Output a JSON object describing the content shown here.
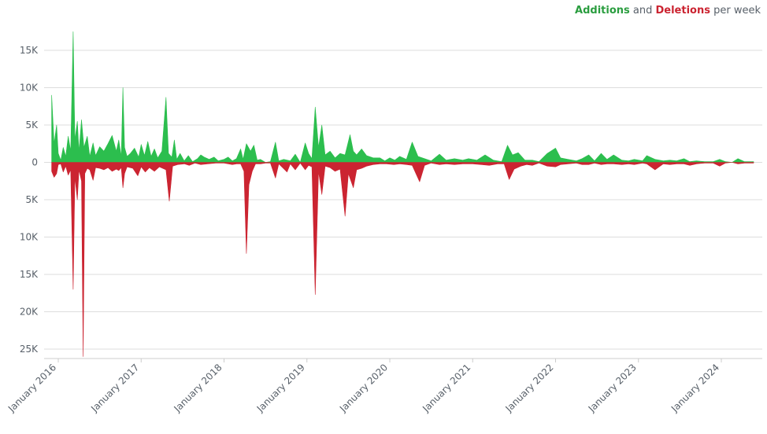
{
  "legend": {
    "additions": "Additions",
    "and": " and ",
    "deletions": "Deletions",
    "suffix": " per week"
  },
  "chart_data": {
    "type": "area",
    "title": "Additions and Deletions per week",
    "xlabel": "",
    "ylabel": "",
    "colors": {
      "additions": "#2cbe4e",
      "deletions": "#cb2431",
      "grid": "#dddddd",
      "text": "#586069"
    },
    "ylim": [
      -26000,
      18000
    ],
    "y_ticks": [
      {
        "value": 15000,
        "label": "15K"
      },
      {
        "value": 10000,
        "label": "10K"
      },
      {
        "value": 5000,
        "label": "5K"
      },
      {
        "value": 0,
        "label": "0"
      },
      {
        "value": -5000,
        "label": "5K"
      },
      {
        "value": -10000,
        "label": "10K"
      },
      {
        "value": -15000,
        "label": "15K"
      },
      {
        "value": -20000,
        "label": "20K"
      },
      {
        "value": -25000,
        "label": "25K"
      }
    ],
    "xlim": [
      2015.92,
      2024.39
    ],
    "x_ticks": [
      {
        "value": 2016,
        "label": "January 2016"
      },
      {
        "value": 2017,
        "label": "January 2017"
      },
      {
        "value": 2018,
        "label": "January 2018"
      },
      {
        "value": 2019,
        "label": "January 2019"
      },
      {
        "value": 2020,
        "label": "January 2020"
      },
      {
        "value": 2021,
        "label": "January 2021"
      },
      {
        "value": 2022,
        "label": "January 2022"
      },
      {
        "value": 2023,
        "label": "January 2023"
      },
      {
        "value": 2024,
        "label": "January 2024"
      }
    ],
    "grid": true,
    "legend_position": "top-right",
    "series": [
      {
        "name": "Additions",
        "color": "#2cbe4e",
        "points": [
          [
            2015.92,
            9000
          ],
          [
            2015.95,
            2500
          ],
          [
            2015.98,
            5000
          ],
          [
            2016.0,
            1200
          ],
          [
            2016.03,
            300
          ],
          [
            2016.06,
            2000
          ],
          [
            2016.09,
            800
          ],
          [
            2016.12,
            3500
          ],
          [
            2016.15,
            1500
          ],
          [
            2016.18,
            17500
          ],
          [
            2016.2,
            3000
          ],
          [
            2016.23,
            5500
          ],
          [
            2016.25,
            1500
          ],
          [
            2016.28,
            5700
          ],
          [
            2016.31,
            2000
          ],
          [
            2016.35,
            3500
          ],
          [
            2016.38,
            800
          ],
          [
            2016.42,
            2600
          ],
          [
            2016.45,
            900
          ],
          [
            2016.5,
            2100
          ],
          [
            2016.55,
            1500
          ],
          [
            2016.6,
            2500
          ],
          [
            2016.65,
            3600
          ],
          [
            2016.7,
            1500
          ],
          [
            2016.73,
            3000
          ],
          [
            2016.76,
            800
          ],
          [
            2016.78,
            10000
          ],
          [
            2016.8,
            2000
          ],
          [
            2016.83,
            800
          ],
          [
            2016.87,
            1200
          ],
          [
            2016.92,
            1900
          ],
          [
            2016.97,
            700
          ],
          [
            2017.0,
            2400
          ],
          [
            2017.04,
            900
          ],
          [
            2017.08,
            2800
          ],
          [
            2017.12,
            800
          ],
          [
            2017.16,
            1800
          ],
          [
            2017.2,
            600
          ],
          [
            2017.25,
            1500
          ],
          [
            2017.3,
            8700
          ],
          [
            2017.33,
            1200
          ],
          [
            2017.37,
            700
          ],
          [
            2017.4,
            3000
          ],
          [
            2017.43,
            400
          ],
          [
            2017.47,
            1200
          ],
          [
            2017.52,
            200
          ],
          [
            2017.57,
            900
          ],
          [
            2017.62,
            100
          ],
          [
            2017.68,
            500
          ],
          [
            2017.72,
            1000
          ],
          [
            2017.76,
            700
          ],
          [
            2017.82,
            400
          ],
          [
            2017.88,
            700
          ],
          [
            2017.93,
            200
          ],
          [
            2018.0,
            400
          ],
          [
            2018.05,
            700
          ],
          [
            2018.1,
            200
          ],
          [
            2018.15,
            500
          ],
          [
            2018.2,
            1800
          ],
          [
            2018.23,
            400
          ],
          [
            2018.27,
            2500
          ],
          [
            2018.32,
            1500
          ],
          [
            2018.36,
            2300
          ],
          [
            2018.4,
            300
          ],
          [
            2018.44,
            400
          ],
          [
            2018.5,
            0
          ],
          [
            2018.56,
            100
          ],
          [
            2018.62,
            2700
          ],
          [
            2018.66,
            200
          ],
          [
            2018.72,
            400
          ],
          [
            2018.8,
            200
          ],
          [
            2018.86,
            1100
          ],
          [
            2018.92,
            0
          ],
          [
            2018.98,
            2600
          ],
          [
            2019.02,
            1200
          ],
          [
            2019.06,
            500
          ],
          [
            2019.1,
            7400
          ],
          [
            2019.14,
            2000
          ],
          [
            2019.18,
            5000
          ],
          [
            2019.22,
            1000
          ],
          [
            2019.28,
            1500
          ],
          [
            2019.34,
            600
          ],
          [
            2019.4,
            1200
          ],
          [
            2019.46,
            1000
          ],
          [
            2019.52,
            3700
          ],
          [
            2019.56,
            1500
          ],
          [
            2019.6,
            1000
          ],
          [
            2019.66,
            1800
          ],
          [
            2019.72,
            900
          ],
          [
            2019.8,
            600
          ],
          [
            2019.88,
            600
          ],
          [
            2019.94,
            200
          ],
          [
            2020.0,
            600
          ],
          [
            2020.06,
            300
          ],
          [
            2020.12,
            800
          ],
          [
            2020.2,
            400
          ],
          [
            2020.27,
            2700
          ],
          [
            2020.34,
            800
          ],
          [
            2020.42,
            500
          ],
          [
            2020.5,
            200
          ],
          [
            2020.6,
            1100
          ],
          [
            2020.68,
            300
          ],
          [
            2020.78,
            500
          ],
          [
            2020.88,
            300
          ],
          [
            2020.95,
            500
          ],
          [
            2021.05,
            300
          ],
          [
            2021.15,
            1000
          ],
          [
            2021.25,
            300
          ],
          [
            2021.35,
            100
          ],
          [
            2021.42,
            2300
          ],
          [
            2021.48,
            1000
          ],
          [
            2021.55,
            1300
          ],
          [
            2021.63,
            300
          ],
          [
            2021.72,
            300
          ],
          [
            2021.8,
            100
          ],
          [
            2021.9,
            1200
          ],
          [
            2022.0,
            1900
          ],
          [
            2022.06,
            600
          ],
          [
            2022.15,
            400
          ],
          [
            2022.25,
            200
          ],
          [
            2022.32,
            500
          ],
          [
            2022.4,
            1000
          ],
          [
            2022.47,
            200
          ],
          [
            2022.55,
            1200
          ],
          [
            2022.62,
            400
          ],
          [
            2022.7,
            1000
          ],
          [
            2022.8,
            300
          ],
          [
            2022.88,
            200
          ],
          [
            2022.95,
            400
          ],
          [
            2023.05,
            200
          ],
          [
            2023.1,
            900
          ],
          [
            2023.2,
            400
          ],
          [
            2023.3,
            200
          ],
          [
            2023.38,
            300
          ],
          [
            2023.46,
            200
          ],
          [
            2023.55,
            500
          ],
          [
            2023.62,
            100
          ],
          [
            2023.7,
            200
          ],
          [
            2023.8,
            100
          ],
          [
            2023.9,
            100
          ],
          [
            2023.98,
            400
          ],
          [
            2024.05,
            100
          ],
          [
            2024.13,
            0
          ],
          [
            2024.2,
            500
          ],
          [
            2024.28,
            100
          ],
          [
            2024.35,
            100
          ],
          [
            2024.39,
            100
          ]
        ]
      },
      {
        "name": "Deletions",
        "color": "#cb2431",
        "points": [
          [
            2015.92,
            -1200
          ],
          [
            2015.95,
            -2000
          ],
          [
            2015.98,
            -1500
          ],
          [
            2016.0,
            -300
          ],
          [
            2016.03,
            -200
          ],
          [
            2016.06,
            -1300
          ],
          [
            2016.09,
            -500
          ],
          [
            2016.12,
            -1700
          ],
          [
            2016.15,
            -1000
          ],
          [
            2016.18,
            -17000
          ],
          [
            2016.2,
            -2000
          ],
          [
            2016.23,
            -5000
          ],
          [
            2016.25,
            -1000
          ],
          [
            2016.28,
            -2500
          ],
          [
            2016.3,
            -26000
          ],
          [
            2016.32,
            -1500
          ],
          [
            2016.35,
            -800
          ],
          [
            2016.38,
            -1000
          ],
          [
            2016.42,
            -2400
          ],
          [
            2016.45,
            -700
          ],
          [
            2016.5,
            -800
          ],
          [
            2016.55,
            -1000
          ],
          [
            2016.6,
            -700
          ],
          [
            2016.65,
            -1200
          ],
          [
            2016.7,
            -900
          ],
          [
            2016.73,
            -1100
          ],
          [
            2016.76,
            -700
          ],
          [
            2016.78,
            -3400
          ],
          [
            2016.8,
            -1500
          ],
          [
            2016.83,
            -600
          ],
          [
            2016.9,
            -800
          ],
          [
            2016.96,
            -1800
          ],
          [
            2017.0,
            -600
          ],
          [
            2017.05,
            -1300
          ],
          [
            2017.1,
            -700
          ],
          [
            2017.16,
            -1200
          ],
          [
            2017.22,
            -600
          ],
          [
            2017.3,
            -1000
          ],
          [
            2017.34,
            -5200
          ],
          [
            2017.38,
            -500
          ],
          [
            2017.44,
            -300
          ],
          [
            2017.52,
            -200
          ],
          [
            2017.58,
            -400
          ],
          [
            2017.65,
            -100
          ],
          [
            2017.72,
            -300
          ],
          [
            2017.8,
            -200
          ],
          [
            2017.9,
            -100
          ],
          [
            2018.0,
            -100
          ],
          [
            2018.1,
            -300
          ],
          [
            2018.15,
            -200
          ],
          [
            2018.2,
            -200
          ],
          [
            2018.24,
            -1200
          ],
          [
            2018.27,
            -12200
          ],
          [
            2018.3,
            -3000
          ],
          [
            2018.34,
            -1200
          ],
          [
            2018.38,
            -200
          ],
          [
            2018.44,
            -200
          ],
          [
            2018.5,
            -100
          ],
          [
            2018.56,
            -100
          ],
          [
            2018.62,
            -2100
          ],
          [
            2018.66,
            -200
          ],
          [
            2018.76,
            -1300
          ],
          [
            2018.8,
            -200
          ],
          [
            2018.86,
            -1000
          ],
          [
            2018.92,
            -100
          ],
          [
            2018.98,
            -1000
          ],
          [
            2019.02,
            -400
          ],
          [
            2019.06,
            -600
          ],
          [
            2019.1,
            -17700
          ],
          [
            2019.14,
            -1200
          ],
          [
            2019.18,
            -4300
          ],
          [
            2019.22,
            -500
          ],
          [
            2019.28,
            -700
          ],
          [
            2019.34,
            -1200
          ],
          [
            2019.4,
            -900
          ],
          [
            2019.46,
            -7200
          ],
          [
            2019.5,
            -1500
          ],
          [
            2019.56,
            -3400
          ],
          [
            2019.6,
            -1000
          ],
          [
            2019.66,
            -800
          ],
          [
            2019.72,
            -500
          ],
          [
            2019.8,
            -300
          ],
          [
            2019.88,
            -200
          ],
          [
            2019.96,
            -200
          ],
          [
            2020.05,
            -300
          ],
          [
            2020.12,
            -200
          ],
          [
            2020.2,
            -300
          ],
          [
            2020.27,
            -400
          ],
          [
            2020.36,
            -2600
          ],
          [
            2020.42,
            -400
          ],
          [
            2020.5,
            -100
          ],
          [
            2020.6,
            -300
          ],
          [
            2020.68,
            -200
          ],
          [
            2020.78,
            -300
          ],
          [
            2020.88,
            -200
          ],
          [
            2021.0,
            -200
          ],
          [
            2021.1,
            -300
          ],
          [
            2021.2,
            -400
          ],
          [
            2021.3,
            -200
          ],
          [
            2021.38,
            -200
          ],
          [
            2021.44,
            -2300
          ],
          [
            2021.5,
            -900
          ],
          [
            2021.58,
            -500
          ],
          [
            2021.65,
            -300
          ],
          [
            2021.72,
            -400
          ],
          [
            2021.8,
            -100
          ],
          [
            2021.9,
            -500
          ],
          [
            2022.0,
            -600
          ],
          [
            2022.06,
            -300
          ],
          [
            2022.15,
            -200
          ],
          [
            2022.25,
            -100
          ],
          [
            2022.32,
            -300
          ],
          [
            2022.4,
            -300
          ],
          [
            2022.47,
            -100
          ],
          [
            2022.55,
            -300
          ],
          [
            2022.62,
            -200
          ],
          [
            2022.7,
            -200
          ],
          [
            2022.8,
            -300
          ],
          [
            2022.88,
            -200
          ],
          [
            2022.95,
            -300
          ],
          [
            2023.05,
            -100
          ],
          [
            2023.1,
            -200
          ],
          [
            2023.2,
            -1000
          ],
          [
            2023.3,
            -200
          ],
          [
            2023.38,
            -300
          ],
          [
            2023.46,
            -200
          ],
          [
            2023.55,
            -200
          ],
          [
            2023.62,
            -400
          ],
          [
            2023.7,
            -200
          ],
          [
            2023.8,
            -100
          ],
          [
            2023.9,
            -100
          ],
          [
            2023.98,
            -500
          ],
          [
            2024.05,
            -100
          ],
          [
            2024.13,
            0
          ],
          [
            2024.2,
            -200
          ],
          [
            2024.28,
            -100
          ],
          [
            2024.35,
            -100
          ],
          [
            2024.39,
            -100
          ]
        ]
      }
    ]
  }
}
